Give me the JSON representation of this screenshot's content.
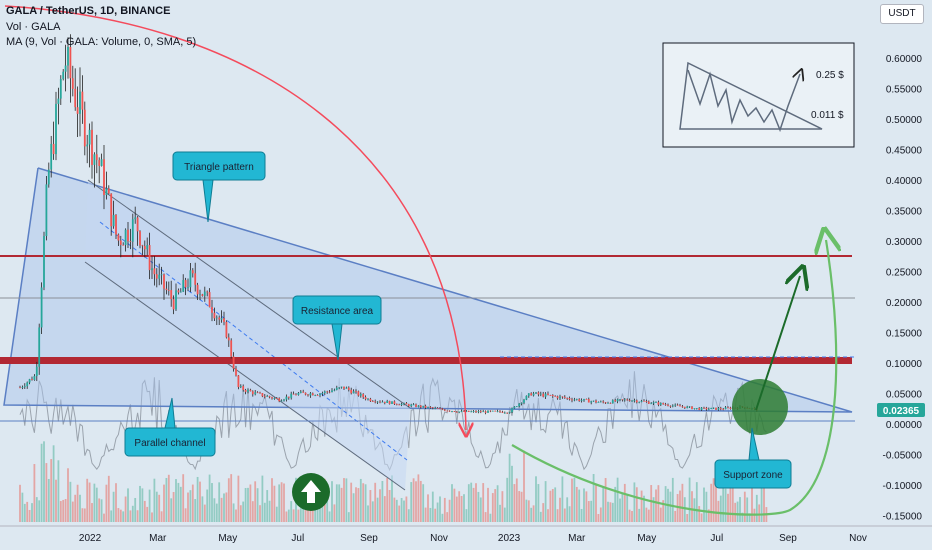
{
  "header": {
    "title": "GALA / TetherUS, 1D, BINANCE",
    "vol_label": "Vol · GALA",
    "ma_label": "MA (9, Vol · GALA: Volume, 0, SMA, 5)"
  },
  "currency_button": "USDT",
  "current_price": "0.02365",
  "annotations": {
    "triangle": "Triangle pattern",
    "resistance": "Resistance area",
    "parallel": "Parallel channel",
    "support": "Support zone"
  },
  "inset": {
    "target_label": "0.25 $",
    "base_label": "0.011 $"
  },
  "colors": {
    "background": "#dde8f1",
    "candle_up": "#26a69a",
    "candle_down": "#ef5350",
    "resistance_line": "#b22833",
    "triangle_line": "#5b7fc4",
    "callout_fill": "#22b7d3",
    "support_zone": "#2e7d32",
    "arrow_green": "#1b6b2a",
    "curve_green": "#6abf69",
    "curve_red": "#f44b5c"
  },
  "chart_data": {
    "type": "line",
    "symbol": "GALA / TetherUS",
    "interval": "1D",
    "exchange": "BINANCE",
    "y_axis_ticks": [
      0.6,
      0.55,
      0.5,
      0.45,
      0.4,
      0.35,
      0.3,
      0.25,
      0.2,
      0.15,
      0.1,
      0.05,
      0.0,
      -0.05,
      -0.1,
      -0.15
    ],
    "y_axis_tick_labels": [
      "0.60000",
      "0.55000",
      "0.50000",
      "0.45000",
      "0.40000",
      "0.35000",
      "0.30000",
      "0.25000",
      "0.20000",
      "0.15000",
      "0.10000",
      "0.05000",
      "0.00000",
      "-0.05000",
      "-0.10000",
      "-0.15000"
    ],
    "x_axis_labels": [
      "2022",
      "Mar",
      "May",
      "Jul",
      "Sep",
      "Nov",
      "2023",
      "Mar",
      "May",
      "Jul",
      "Sep",
      "Nov"
    ],
    "ylim": [
      -0.16,
      0.65
    ],
    "price_series": {
      "name": "GALA / TetherUS",
      "x": [
        "2021-11-01",
        "2021-11-15",
        "2021-11-25",
        "2021-12-10",
        "2021-12-25",
        "2022-01-10",
        "2022-01-25",
        "2022-02-10",
        "2022-02-25",
        "2022-03-15",
        "2022-03-30",
        "2022-04-15",
        "2022-04-30",
        "2022-05-10",
        "2022-05-25",
        "2022-06-15",
        "2022-07-01",
        "2022-07-20",
        "2022-08-10",
        "2022-09-01",
        "2022-09-20",
        "2022-10-10",
        "2022-10-30",
        "2022-11-20",
        "2022-12-10",
        "2023-01-01",
        "2023-01-20",
        "2023-02-10",
        "2023-03-01",
        "2023-03-25",
        "2023-04-15",
        "2023-05-05",
        "2023-05-25",
        "2023-06-15",
        "2023-07-05",
        "2023-07-25",
        "2023-08-05"
      ],
      "values": [
        0.06,
        0.08,
        0.4,
        0.6,
        0.5,
        0.42,
        0.3,
        0.33,
        0.25,
        0.2,
        0.24,
        0.2,
        0.15,
        0.06,
        0.05,
        0.04,
        0.05,
        0.05,
        0.06,
        0.04,
        0.035,
        0.03,
        0.025,
        0.02,
        0.02,
        0.02,
        0.05,
        0.045,
        0.04,
        0.035,
        0.04,
        0.035,
        0.03,
        0.025,
        0.025,
        0.028,
        0.02365
      ]
    },
    "levels": [
      {
        "name": "Resistance area",
        "value": 0.1
      },
      {
        "value": 0.27
      },
      {
        "value": 0.2
      },
      {
        "name": "Support zone",
        "value": 0.02
      }
    ],
    "current_price": 0.02365
  }
}
